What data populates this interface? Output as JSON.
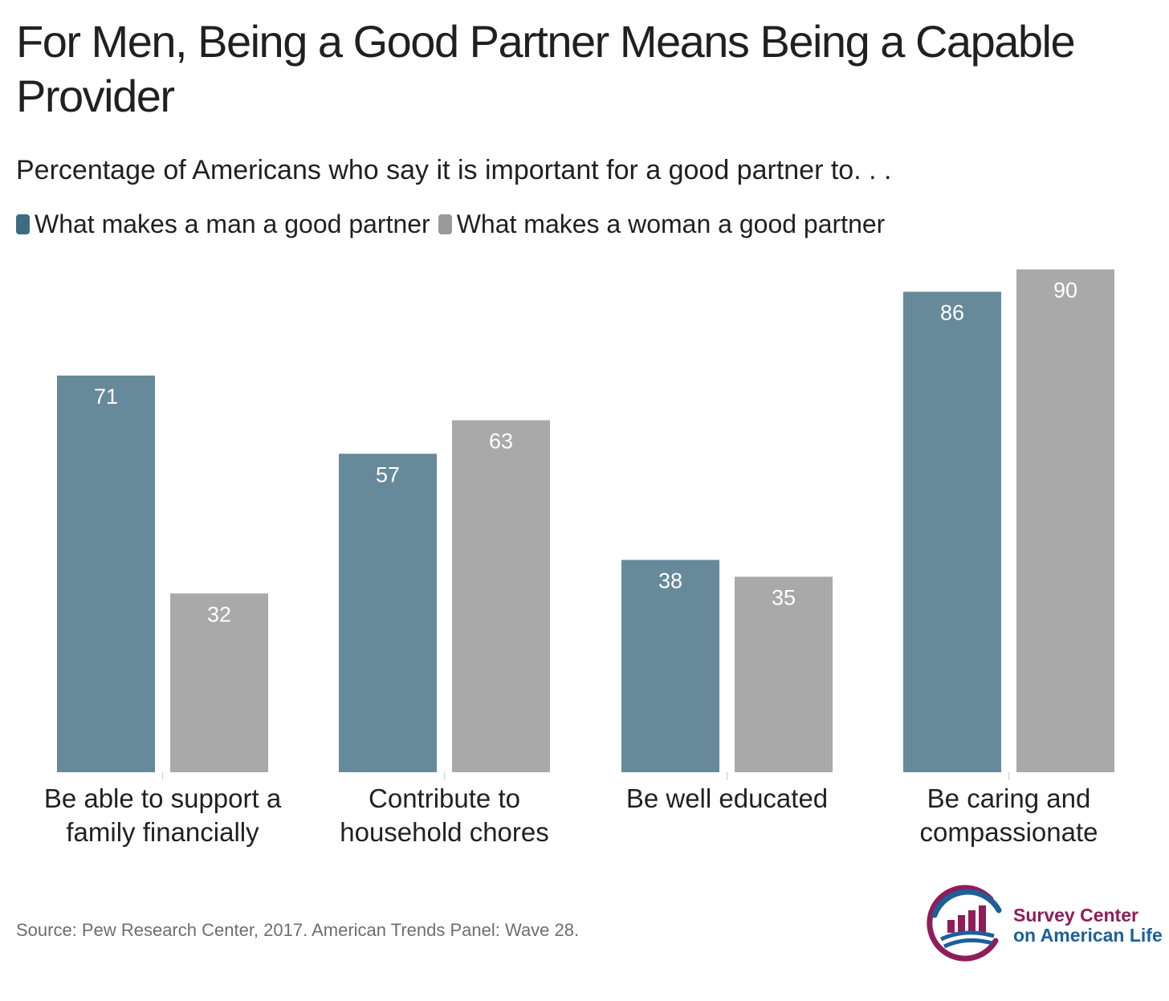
{
  "chart_data": {
    "type": "bar",
    "title": "For Men, Being a Good Partner Means Being a Capable Provider",
    "subtitle": "Percentage of Americans who say it is important for a good partner to. . .",
    "categories": [
      [
        "Be able to support a",
        "family financially"
      ],
      [
        "Contribute to",
        "household chores"
      ],
      [
        "Be well educated"
      ],
      [
        "Be caring and",
        "compassionate"
      ]
    ],
    "series": [
      {
        "name": "What makes a man a good partner",
        "color": "#668a9a",
        "values": [
          71,
          57,
          38,
          86
        ]
      },
      {
        "name": "What makes a woman a good partner",
        "color": "#a9a9a9",
        "values": [
          32,
          63,
          35,
          90
        ]
      }
    ],
    "ylim": [
      0,
      90
    ],
    "xlabel": "",
    "ylabel": "",
    "grid": false,
    "legend_position": "top-left"
  },
  "source": "Source: Pew Research Center, 2017. American Trends Panel: Wave 28.",
  "logo": {
    "line1": "Survey Center",
    "line2": "on American Life"
  }
}
